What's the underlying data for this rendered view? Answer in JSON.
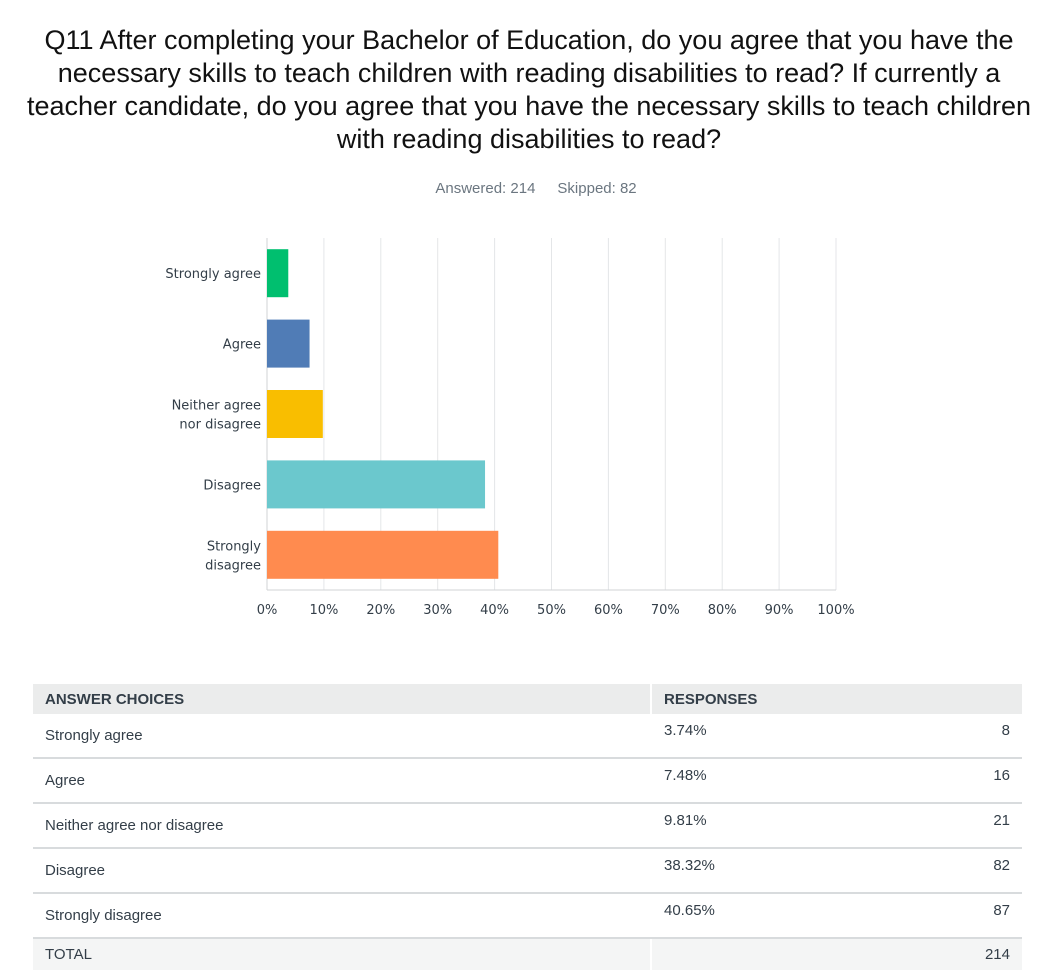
{
  "question": {
    "title": "Q11 After completing your Bachelor of Education, do you agree that you have the necessary skills to teach children with reading disabilities to read? If currently a teacher candidate, do you agree that you have the necessary skills to teach children with reading disabilities to read?",
    "answered": "Answered: 214",
    "skipped": "Skipped: 82"
  },
  "chart_data": {
    "type": "bar",
    "orientation": "horizontal",
    "categories": [
      [
        "Strongly agree"
      ],
      [
        "Agree"
      ],
      [
        "Neither agree",
        "nor disagree"
      ],
      [
        "Disagree"
      ],
      [
        "Strongly",
        "disagree"
      ]
    ],
    "values": [
      3.74,
      7.48,
      9.81,
      38.32,
      40.65
    ],
    "colors": [
      "#00bf6f",
      "#507cb6",
      "#f9be00",
      "#6bc8cd",
      "#ff8b4f"
    ],
    "xlim": [
      0,
      100
    ],
    "ticks": [
      "0%",
      "10%",
      "20%",
      "30%",
      "40%",
      "50%",
      "60%",
      "70%",
      "80%",
      "90%",
      "100%"
    ],
    "grid": true
  },
  "table": {
    "headers": {
      "choices": "ANSWER CHOICES",
      "responses": "RESPONSES"
    },
    "rows": [
      {
        "choice": "Strongly agree",
        "percent": "3.74%",
        "count": "8"
      },
      {
        "choice": "Agree",
        "percent": "7.48%",
        "count": "16"
      },
      {
        "choice": "Neither agree nor disagree",
        "percent": "9.81%",
        "count": "21"
      },
      {
        "choice": "Disagree",
        "percent": "38.32%",
        "count": "82"
      },
      {
        "choice": "Strongly disagree",
        "percent": "40.65%",
        "count": "87"
      }
    ],
    "total": {
      "label": "TOTAL",
      "count": "214"
    }
  }
}
